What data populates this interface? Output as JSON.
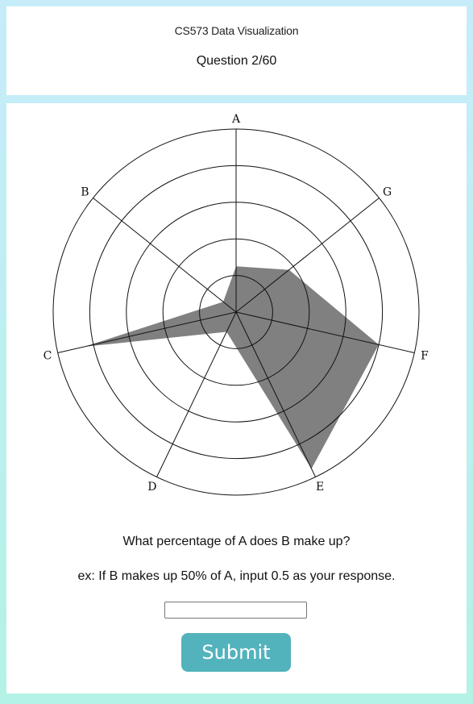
{
  "header": {
    "course_title": "CS573 Data Visualization",
    "question_counter": "Question 2/60"
  },
  "chart_data": {
    "type": "radar",
    "axes": [
      "A",
      "G",
      "F",
      "E",
      "D",
      "C",
      "B"
    ],
    "rings": 5,
    "r_max": 1.0,
    "values": {
      "A": 0.25,
      "G": 0.37,
      "F": 0.8,
      "E": 0.95,
      "D": 0.12,
      "C": 0.85,
      "B": 0.09
    },
    "fill_color": "#808080"
  },
  "question": {
    "prompt": "What percentage of A does B make up?",
    "example": "ex: If B makes up 50% of A, input 0.5 as your response.",
    "input_value": "",
    "submit_label": "Submit"
  },
  "colors": {
    "accent": "#52b3bd",
    "bg_top": "#c6ecfa",
    "bg_bottom": "#b4f2e6"
  }
}
